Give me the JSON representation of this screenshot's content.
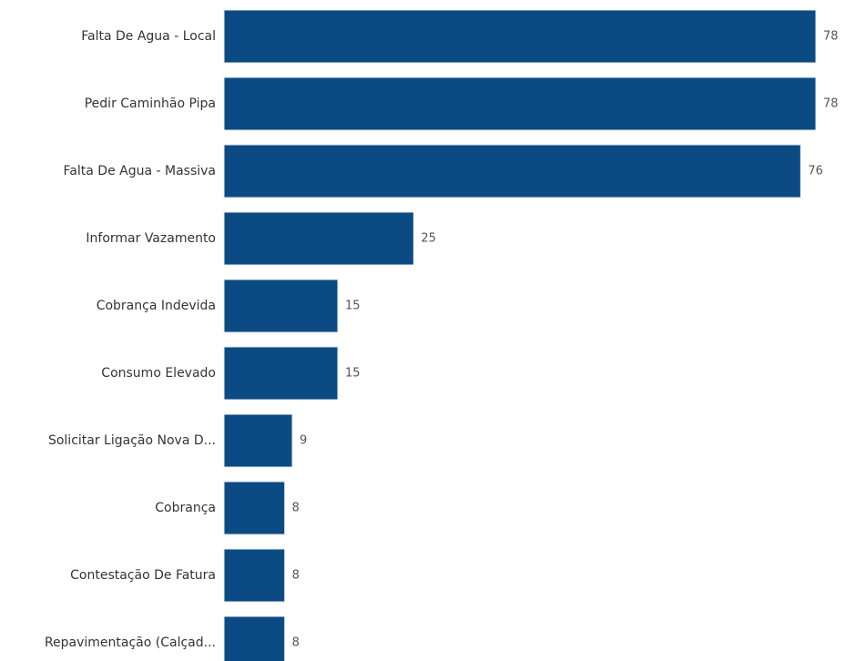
{
  "chart_data": {
    "type": "bar",
    "orientation": "horizontal",
    "categories": [
      "Falta De Agua - Local",
      "Pedir Caminhão Pipa",
      "Falta De Agua - Massiva",
      "Informar Vazamento",
      "Cobrança Indevida",
      "Consumo Elevado",
      "Solicitar Ligação Nova D...",
      "Cobrança",
      "Contestação De Fatura",
      "Repavimentação (Calçad..."
    ],
    "values": [
      78,
      78,
      76,
      25,
      15,
      15,
      9,
      8,
      8,
      8
    ],
    "title": "",
    "xlabel": "",
    "ylabel": "",
    "xlim": [
      0,
      78
    ],
    "grid": false,
    "legend": "none",
    "bar_color": "#0b4a82"
  }
}
